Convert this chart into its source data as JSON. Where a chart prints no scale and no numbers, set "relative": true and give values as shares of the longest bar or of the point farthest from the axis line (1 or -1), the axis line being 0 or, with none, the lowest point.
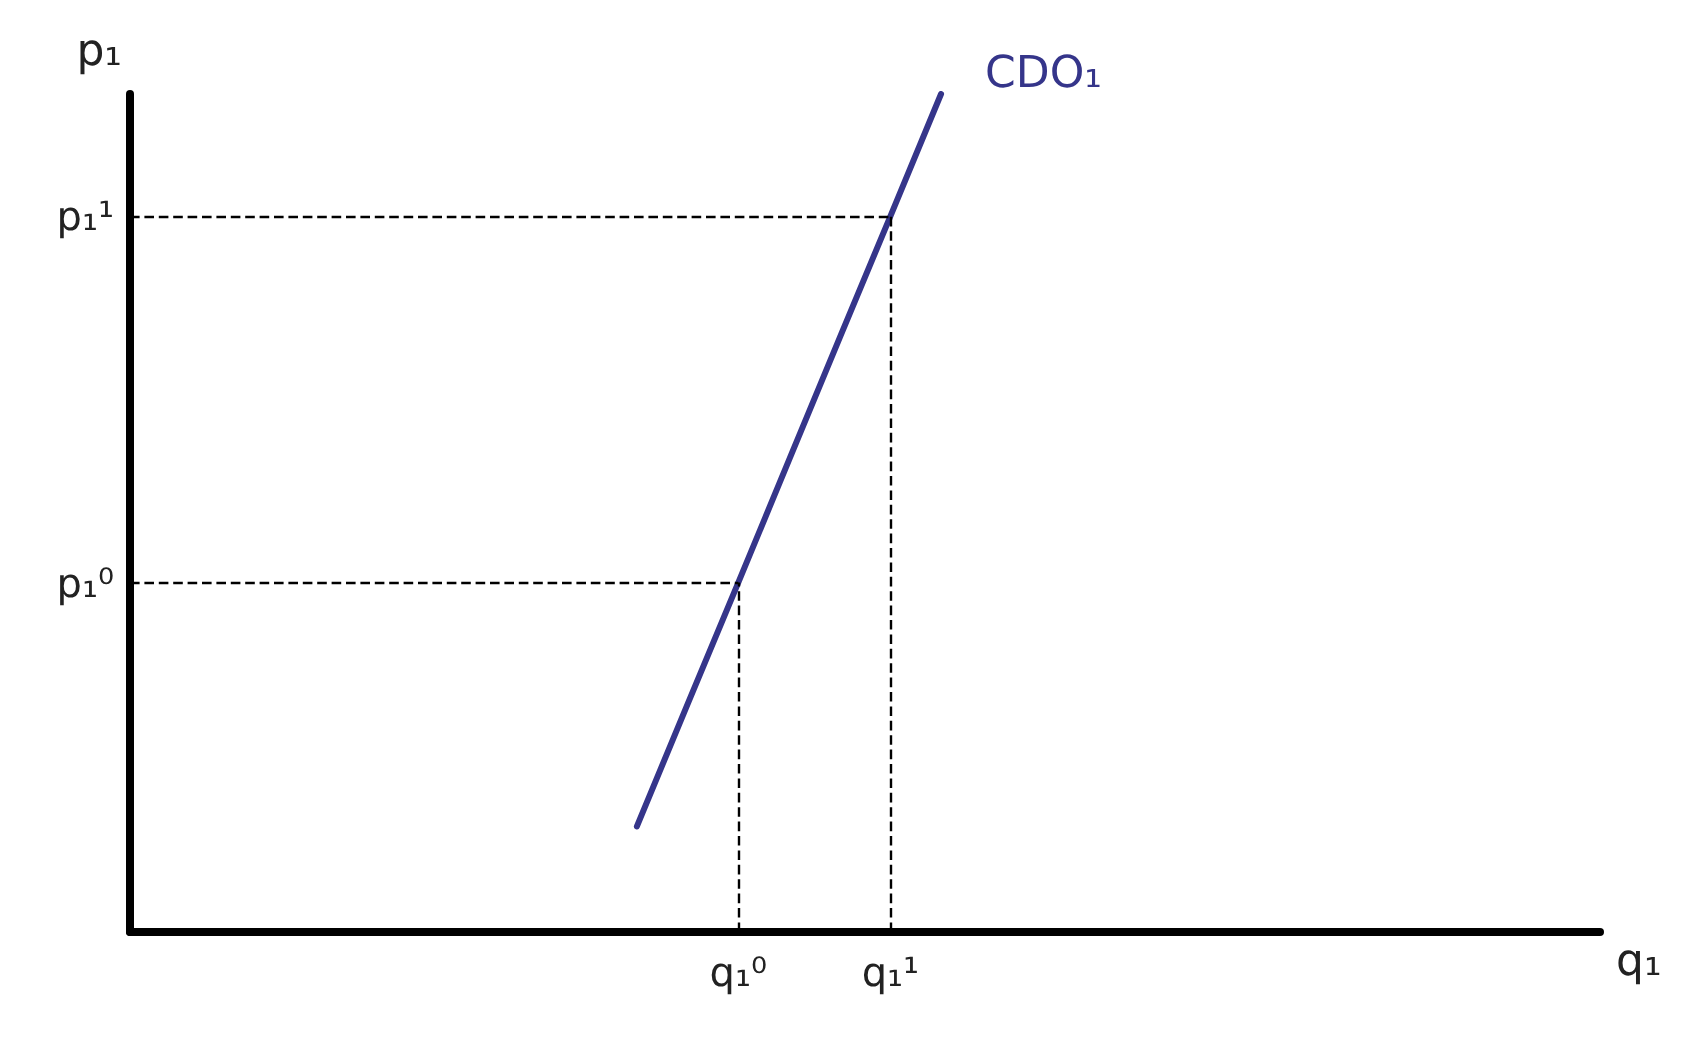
{
  "chart_data": {
    "type": "line",
    "relative": true,
    "xlabel": "q₁",
    "ylabel": "p₁",
    "categories": [
      null,
      null,
      null,
      null,
      null,
      null,
      null,
      null,
      null,
      null,
      null,
      null,
      "q₁⁰",
      null,
      null,
      "q₁¹",
      null,
      null,
      null,
      null,
      null,
      null,
      null,
      null,
      null,
      null,
      null,
      null,
      null,
      null
    ],
    "series": [
      {
        "name": "CDO₁",
        "color": "#35358a",
        "values": [
          null,
          null,
          null,
          null,
          null,
          null,
          null,
          null,
          null,
          null,
          0.126,
          0.272,
          0.417,
          0.563,
          0.709,
          0.854,
          1,
          null,
          null,
          null,
          null,
          null,
          null,
          null,
          null,
          null,
          null,
          null,
          null,
          null
        ]
      }
    ],
    "tick_labels": "x",
    "grid": false,
    "legend": false,
    "marker": "none",
    "line_style": "solid",
    "ref_lines": [
      {
        "axis": "y",
        "value": 0.417,
        "label": "p₁⁰",
        "line_style": "dashed",
        "color": "#000000"
      },
      {
        "axis": "y",
        "value": 0.854,
        "label": "p₁¹",
        "line_style": "dashed",
        "color": "#000000"
      },
      {
        "axis": "x",
        "value": "q₁⁰",
        "line_style": "dashed",
        "color": "#000000"
      },
      {
        "axis": "x",
        "value": "q₁¹",
        "line_style": "dashed",
        "color": "#000000"
      }
    ]
  }
}
